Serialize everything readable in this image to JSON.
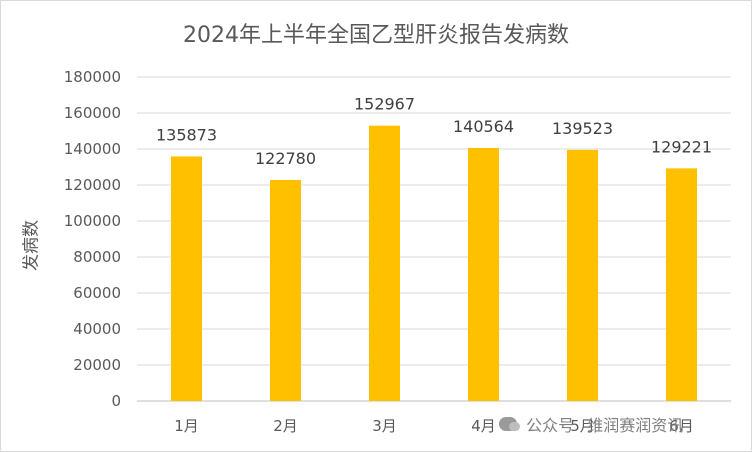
{
  "chart_data": {
    "type": "bar",
    "title": "2024年上半年全国乙型肝炎报告发病数",
    "xlabel": "",
    "ylabel": "发病数",
    "categories": [
      "1月",
      "2月",
      "3月",
      "4月",
      "5月",
      "6月"
    ],
    "values": [
      135873,
      122780,
      152967,
      140564,
      139523,
      129221
    ],
    "ylim": [
      0,
      180000
    ],
    "yticks": [
      0,
      20000,
      40000,
      60000,
      80000,
      100000,
      120000,
      140000,
      160000,
      180000
    ],
    "bar_color": "#FFC000",
    "grid": true,
    "legend": "none",
    "data_labels": true
  },
  "watermark": {
    "source_label": "公众号",
    "name": "维润赛润资讯",
    "icon": "wechat-icon"
  }
}
